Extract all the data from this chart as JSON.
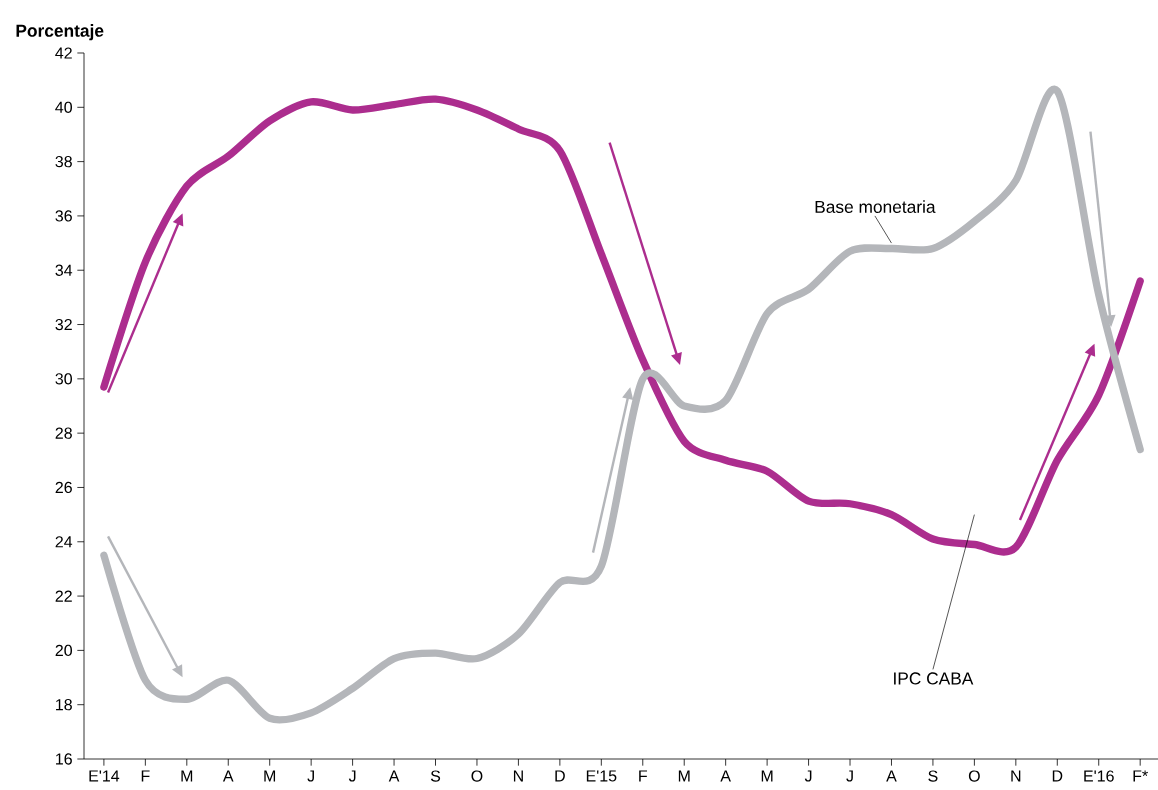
{
  "chart_data": {
    "type": "line",
    "ylabel": "Porcentaje",
    "categories": [
      "E'14",
      "F",
      "M",
      "A",
      "M",
      "J",
      "J",
      "A",
      "S",
      "O",
      "N",
      "D",
      "E'15",
      "F",
      "M",
      "A",
      "M",
      "J",
      "J",
      "A",
      "S",
      "O",
      "N",
      "D",
      "E'16",
      "F*"
    ],
    "series": [
      {
        "name": "IPC CABA",
        "color": "#ac2d8e",
        "values": [
          29.7,
          34.3,
          37.1,
          38.2,
          39.5,
          40.2,
          39.9,
          40.1,
          40.3,
          39.9,
          39.2,
          38.4,
          34.6,
          30.7,
          27.7,
          27.0,
          26.6,
          25.5,
          25.4,
          25.0,
          24.1,
          23.9,
          23.8,
          27.0,
          29.4,
          33.6
        ]
      },
      {
        "name": "Base monetaria",
        "color": "#b4b6ba",
        "values": [
          23.5,
          18.9,
          18.2,
          18.9,
          17.5,
          17.7,
          18.6,
          19.7,
          19.9,
          19.7,
          20.6,
          22.5,
          23.1,
          30.0,
          29.0,
          29.2,
          32.4,
          33.3,
          34.7,
          34.8,
          34.8,
          35.8,
          37.3,
          40.6,
          33.1,
          27.4
        ]
      }
    ],
    "ylim": [
      16,
      42
    ],
    "yticks": [
      16,
      18,
      20,
      22,
      24,
      26,
      28,
      30,
      32,
      34,
      36,
      38,
      40,
      42
    ],
    "grid": false,
    "legend": false,
    "marker": "none",
    "line_style": "solid"
  }
}
